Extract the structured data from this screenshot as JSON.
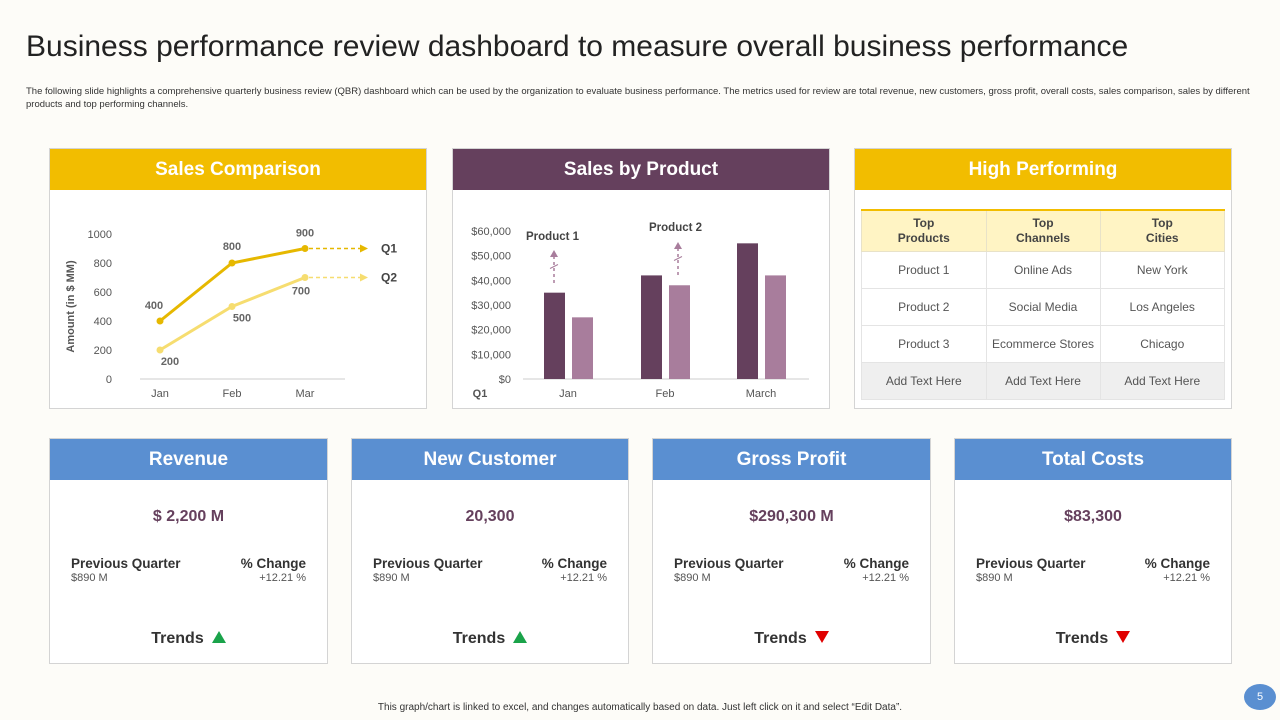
{
  "page": {
    "title": "Business performance review dashboard to measure overall business performance",
    "subtitle": "The following slide highlights a comprehensive quarterly business review (QBR) dashboard which can be used by the organization to evaluate business performance. The metrics used for review are total revenue, new customers, gross profit, overall costs, sales comparison, sales by different products and top performing channels.",
    "footer": "This graph/chart is linked to excel, and changes automatically based on data. Just left click on it and select “Edit Data”.",
    "page_number": "5"
  },
  "colors": {
    "yellow": "#f2bd00",
    "purple": "#65405d",
    "blue": "#5a8fd1",
    "q1_line": "#e6b800",
    "q2_line": "#f6dd70",
    "bar_dark": "#65405d",
    "bar_light": "#a87d9c",
    "up": "#1aa34a",
    "down": "#e00000"
  },
  "panels": {
    "sales_comparison": "Sales Comparison",
    "sales_by_product": "Sales by Product",
    "high_performing": "High Performing"
  },
  "chart_data": [
    {
      "type": "line",
      "title": "Sales Comparison",
      "ylabel": "Amount (in $ MM)",
      "xlabel": "",
      "categories": [
        "Jan",
        "Feb",
        "Mar"
      ],
      "yticks": [
        "0",
        "200",
        "400",
        "600",
        "800",
        "1000"
      ],
      "ylim": [
        0,
        1000
      ],
      "series": [
        {
          "name": "Q1",
          "values": [
            400,
            800,
            900
          ],
          "labels": [
            "400",
            "800",
            "900"
          ]
        },
        {
          "name": "Q2",
          "values": [
            200,
            500,
            700
          ],
          "labels": [
            "200",
            "500",
            "700"
          ]
        }
      ]
    },
    {
      "type": "bar",
      "title": "Sales by Product",
      "xlabel": "Q1",
      "categories": [
        "Jan",
        "Feb",
        "March"
      ],
      "yticks": [
        "$0",
        "$10,000",
        "$20,000",
        "$30,000",
        "$40,000",
        "$50,000",
        "$60,000"
      ],
      "ylim": [
        0,
        60000
      ],
      "series": [
        {
          "name": "Product 1",
          "values": [
            35000,
            42000,
            55000
          ]
        },
        {
          "name": "Product 2",
          "values": [
            25000,
            38000,
            42000
          ]
        }
      ],
      "annotations": [
        "Product 1",
        "Product 2"
      ]
    }
  ],
  "high_performing": {
    "headers": [
      [
        "Top",
        "Products"
      ],
      [
        "Top",
        "Channels"
      ],
      [
        "Top",
        "Cities"
      ]
    ],
    "rows": [
      [
        "Product 1",
        "Online Ads",
        "New York"
      ],
      [
        "Product 2",
        "Social Media",
        "Los Angeles"
      ],
      [
        "Product 3",
        "Ecommerce Stores",
        "Chicago"
      ],
      [
        "Add Text Here",
        "Add Text Here",
        "Add Text Here"
      ]
    ]
  },
  "kpis": [
    {
      "title": "Revenue",
      "value": "$ 2,200 M",
      "prev_label": "Previous Quarter",
      "prev_value": "$890 M",
      "change_label": "% Change",
      "change_value": "+12.21 %",
      "trend_label": "Trends",
      "trend": "up"
    },
    {
      "title": "New Customer",
      "value": "20,300",
      "prev_label": "Previous Quarter",
      "prev_value": "$890 M",
      "change_label": "% Change",
      "change_value": "+12.21 %",
      "trend_label": "Trends",
      "trend": "up"
    },
    {
      "title": "Gross Profit",
      "value": "$290,300 M",
      "prev_label": "Previous Quarter",
      "prev_value": "$890 M",
      "change_label": "% Change",
      "change_value": "+12.21 %",
      "trend_label": "Trends",
      "trend": "down"
    },
    {
      "title": "Total Costs",
      "value": "$83,300",
      "prev_label": "Previous Quarter",
      "prev_value": "$890 M",
      "change_label": "% Change",
      "change_value": "+12.21 %",
      "trend_label": "Trends",
      "trend": "down"
    }
  ]
}
